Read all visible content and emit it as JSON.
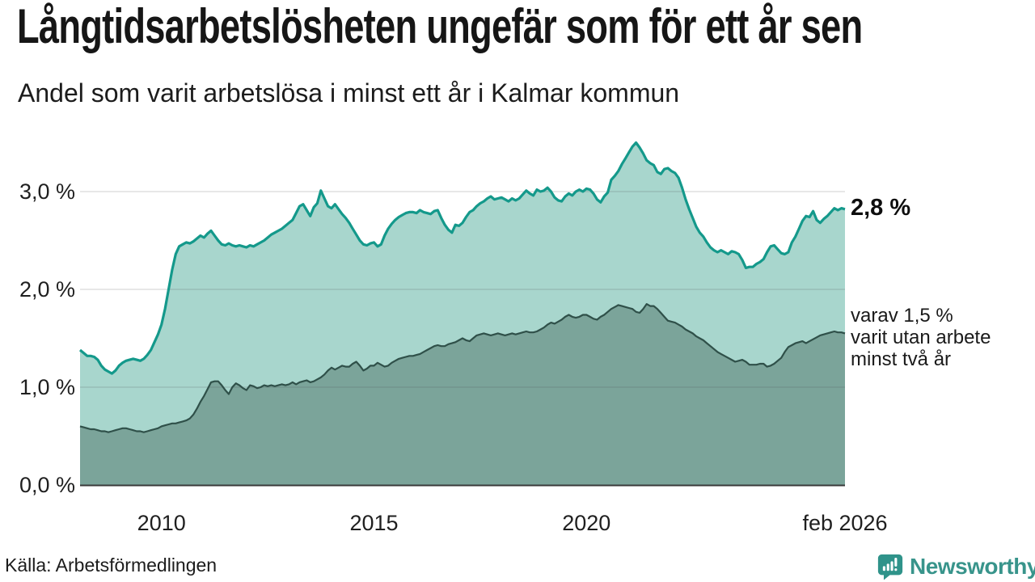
{
  "header": {
    "title": "Långtidsarbetslösheten ungefär som för ett år sen",
    "subtitle": "Andel som varit arbetslösa i minst ett år i Kalmar kommun"
  },
  "chart_data": {
    "type": "area",
    "title": "Långtidsarbetslösheten ungefär som för ett år sen",
    "subtitle": "Andel som varit arbetslösa i minst ett år i Kalmar kommun",
    "x_range": [
      "feb 2008",
      "feb 2026"
    ],
    "x_unit": "month",
    "ylim": [
      0,
      3.7
    ],
    "grid": "horizontal",
    "y_ticks": [
      {
        "label": "0,0 %",
        "value": 0
      },
      {
        "label": "1,0 %",
        "value": 1
      },
      {
        "label": "2,0 %",
        "value": 2
      },
      {
        "label": "3,0 %",
        "value": 3
      }
    ],
    "x_ticks": [
      {
        "label": "2010",
        "month_index": 23
      },
      {
        "label": "2015",
        "month_index": 83
      },
      {
        "label": "2020",
        "month_index": 143
      },
      {
        "label": "feb 2026",
        "month_index": 216
      }
    ],
    "series": [
      {
        "name": "Andel arbetslösa minst ett år",
        "line_color": "#14998b",
        "fill_color": "#a8d6cd",
        "last_value_label": "2,8 %",
        "values": [
          1.38,
          1.35,
          1.32,
          1.32,
          1.31,
          1.28,
          1.22,
          1.18,
          1.16,
          1.14,
          1.17,
          1.22,
          1.25,
          1.27,
          1.28,
          1.29,
          1.28,
          1.27,
          1.29,
          1.33,
          1.38,
          1.46,
          1.54,
          1.64,
          1.8,
          2.0,
          2.2,
          2.36,
          2.44,
          2.46,
          2.48,
          2.47,
          2.49,
          2.52,
          2.55,
          2.53,
          2.57,
          2.6,
          2.55,
          2.5,
          2.46,
          2.45,
          2.47,
          2.45,
          2.44,
          2.45,
          2.44,
          2.43,
          2.45,
          2.44,
          2.46,
          2.48,
          2.5,
          2.53,
          2.56,
          2.58,
          2.6,
          2.62,
          2.65,
          2.68,
          2.71,
          2.78,
          2.85,
          2.87,
          2.81,
          2.75,
          2.84,
          2.88,
          3.01,
          2.93,
          2.85,
          2.83,
          2.87,
          2.82,
          2.77,
          2.73,
          2.68,
          2.62,
          2.56,
          2.5,
          2.46,
          2.45,
          2.47,
          2.48,
          2.44,
          2.46,
          2.55,
          2.62,
          2.67,
          2.71,
          2.74,
          2.76,
          2.78,
          2.79,
          2.79,
          2.78,
          2.81,
          2.79,
          2.78,
          2.77,
          2.8,
          2.81,
          2.73,
          2.66,
          2.61,
          2.58,
          2.66,
          2.65,
          2.68,
          2.74,
          2.79,
          2.81,
          2.85,
          2.88,
          2.9,
          2.93,
          2.95,
          2.92,
          2.93,
          2.94,
          2.92,
          2.9,
          2.93,
          2.91,
          2.93,
          2.97,
          3.01,
          2.98,
          2.96,
          3.02,
          3.0,
          3.01,
          3.04,
          3.0,
          2.94,
          2.91,
          2.9,
          2.95,
          2.98,
          2.96,
          3.0,
          3.02,
          3.0,
          3.03,
          3.02,
          2.98,
          2.92,
          2.89,
          2.95,
          2.99,
          3.12,
          3.16,
          3.21,
          3.28,
          3.34,
          3.4,
          3.46,
          3.5,
          3.45,
          3.39,
          3.32,
          3.29,
          3.27,
          3.2,
          3.18,
          3.23,
          3.24,
          3.21,
          3.19,
          3.14,
          3.04,
          2.92,
          2.82,
          2.73,
          2.64,
          2.58,
          2.54,
          2.48,
          2.43,
          2.4,
          2.38,
          2.4,
          2.38,
          2.36,
          2.39,
          2.38,
          2.36,
          2.3,
          2.22,
          2.23,
          2.23,
          2.26,
          2.28,
          2.31,
          2.38,
          2.44,
          2.45,
          2.41,
          2.37,
          2.36,
          2.38,
          2.48,
          2.54,
          2.62,
          2.7,
          2.75,
          2.74,
          2.8,
          2.71,
          2.68,
          2.72,
          2.75,
          2.79,
          2.83,
          2.81,
          2.83,
          2.82
        ]
      },
      {
        "name": "varav utan arbete minst två år",
        "line_color": "#2f5049",
        "fill_color": "#7ba49a",
        "last_value_label": "1,5 %",
        "values": [
          0.6,
          0.59,
          0.58,
          0.57,
          0.57,
          0.56,
          0.55,
          0.55,
          0.54,
          0.55,
          0.56,
          0.57,
          0.58,
          0.58,
          0.57,
          0.56,
          0.55,
          0.55,
          0.54,
          0.55,
          0.56,
          0.57,
          0.58,
          0.6,
          0.61,
          0.62,
          0.63,
          0.63,
          0.64,
          0.65,
          0.66,
          0.68,
          0.72,
          0.78,
          0.85,
          0.91,
          0.98,
          1.05,
          1.06,
          1.06,
          1.02,
          0.97,
          0.93,
          1.0,
          1.04,
          1.02,
          0.99,
          0.97,
          1.02,
          1.01,
          0.99,
          1.0,
          1.02,
          1.01,
          1.02,
          1.01,
          1.02,
          1.03,
          1.02,
          1.03,
          1.05,
          1.03,
          1.05,
          1.06,
          1.07,
          1.05,
          1.06,
          1.08,
          1.1,
          1.13,
          1.17,
          1.2,
          1.18,
          1.2,
          1.22,
          1.21,
          1.21,
          1.24,
          1.26,
          1.22,
          1.17,
          1.19,
          1.22,
          1.22,
          1.25,
          1.23,
          1.21,
          1.22,
          1.25,
          1.27,
          1.29,
          1.3,
          1.31,
          1.32,
          1.32,
          1.33,
          1.34,
          1.36,
          1.38,
          1.4,
          1.42,
          1.43,
          1.42,
          1.42,
          1.44,
          1.45,
          1.46,
          1.48,
          1.5,
          1.48,
          1.47,
          1.5,
          1.53,
          1.54,
          1.55,
          1.54,
          1.53,
          1.54,
          1.55,
          1.54,
          1.53,
          1.54,
          1.55,
          1.54,
          1.55,
          1.56,
          1.57,
          1.56,
          1.56,
          1.57,
          1.59,
          1.61,
          1.64,
          1.66,
          1.65,
          1.67,
          1.69,
          1.72,
          1.74,
          1.72,
          1.71,
          1.72,
          1.74,
          1.74,
          1.72,
          1.7,
          1.69,
          1.72,
          1.74,
          1.77,
          1.8,
          1.82,
          1.84,
          1.83,
          1.82,
          1.81,
          1.8,
          1.77,
          1.76,
          1.8,
          1.85,
          1.83,
          1.83,
          1.8,
          1.76,
          1.72,
          1.68,
          1.67,
          1.66,
          1.64,
          1.62,
          1.59,
          1.57,
          1.55,
          1.52,
          1.5,
          1.48,
          1.45,
          1.42,
          1.39,
          1.36,
          1.34,
          1.32,
          1.3,
          1.28,
          1.26,
          1.27,
          1.28,
          1.26,
          1.23,
          1.23,
          1.23,
          1.24,
          1.24,
          1.21,
          1.22,
          1.24,
          1.27,
          1.3,
          1.36,
          1.41,
          1.43,
          1.45,
          1.46,
          1.47,
          1.45,
          1.47,
          1.49,
          1.51,
          1.53,
          1.54,
          1.55,
          1.56,
          1.57,
          1.56,
          1.56,
          1.55
        ]
      }
    ],
    "annotations": [
      {
        "text": "2,8 %"
      },
      {
        "text": "varav 1,5 %\nvarit utan arbete\nminst två år"
      }
    ]
  },
  "footer": {
    "source": "Källa: Arbetsförmedlingen",
    "brand": "Newsworthy"
  },
  "colors": {
    "line_1yr": "#14998b",
    "fill_1yr": "#a8d6cd",
    "line_2yr": "#2f5049",
    "fill_2yr": "#7ba49a",
    "axis": "#3a3a3a",
    "brand_teal": "#38948b"
  }
}
